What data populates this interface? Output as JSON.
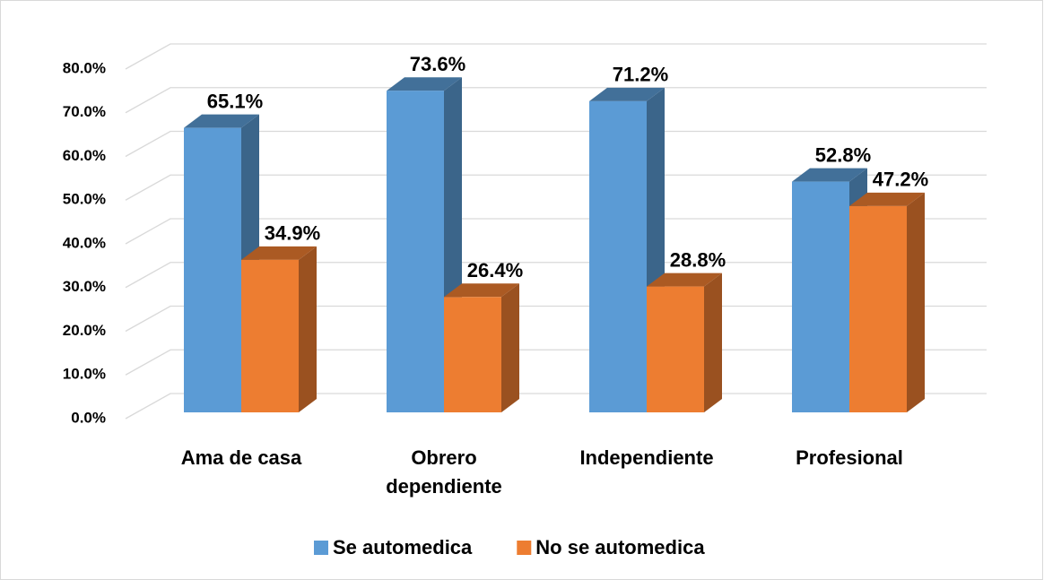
{
  "chart_data": {
    "type": "bar3d",
    "categories": [
      "Ama de casa",
      "Obrero dependiente",
      "Independiente",
      "Profesional"
    ],
    "series": [
      {
        "name": "Se automedica",
        "color": "#5b9bd5",
        "values": [
          65.1,
          73.6,
          71.2,
          52.8
        ],
        "value_labels": [
          "65.1%",
          "73.6%",
          "71.2%",
          "52.8%"
        ]
      },
      {
        "name": "No se automedica",
        "color": "#ed7d31",
        "values": [
          34.9,
          26.4,
          28.8,
          47.2
        ],
        "value_labels": [
          "34.9%",
          "26.4%",
          "28.8%",
          "47.2%"
        ]
      }
    ],
    "ylim": [
      0,
      80
    ],
    "yticks": [
      {
        "value": 0,
        "label": "0.0%"
      },
      {
        "value": 10,
        "label": "10.0%"
      },
      {
        "value": 20,
        "label": "20.0%"
      },
      {
        "value": 30,
        "label": "30.0%"
      },
      {
        "value": 40,
        "label": "40.0%"
      },
      {
        "value": 50,
        "label": "50.0%"
      },
      {
        "value": 60,
        "label": "60.0%"
      },
      {
        "value": 70,
        "label": "70.0%"
      },
      {
        "value": 80,
        "label": "80.0%"
      }
    ],
    "grid": true,
    "legend": "bottom"
  }
}
